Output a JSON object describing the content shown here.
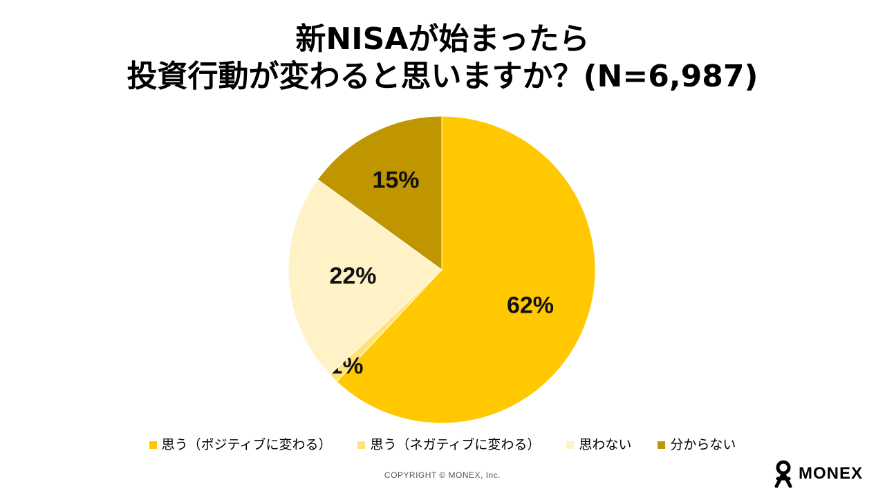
{
  "title": {
    "line1": "新NISAが始まったら",
    "line2": "投資行動が変わると思いますか？(N=6,987)"
  },
  "chart_data": {
    "type": "pie",
    "start": "12 o'clock",
    "direction": "clockwise",
    "slices": [
      {
        "name": "思う（ポジティブに変わる）",
        "value": 62,
        "label": "62%",
        "color": "#FFC800"
      },
      {
        "name": "思う（ネガティブに変わる）",
        "value": 1,
        "label": "1%",
        "color": "#FFE37A"
      },
      {
        "name": "思わない",
        "value": 22,
        "label": "22%",
        "color": "#FFF2C6"
      },
      {
        "name": "分からない",
        "value": 15,
        "label": "15%",
        "color": "#BF9500"
      }
    ],
    "legend_position": "bottom"
  },
  "footer": {
    "copyright": "COPYRIGHT © MONEX, Inc.",
    "logo_text": "MONEX"
  }
}
